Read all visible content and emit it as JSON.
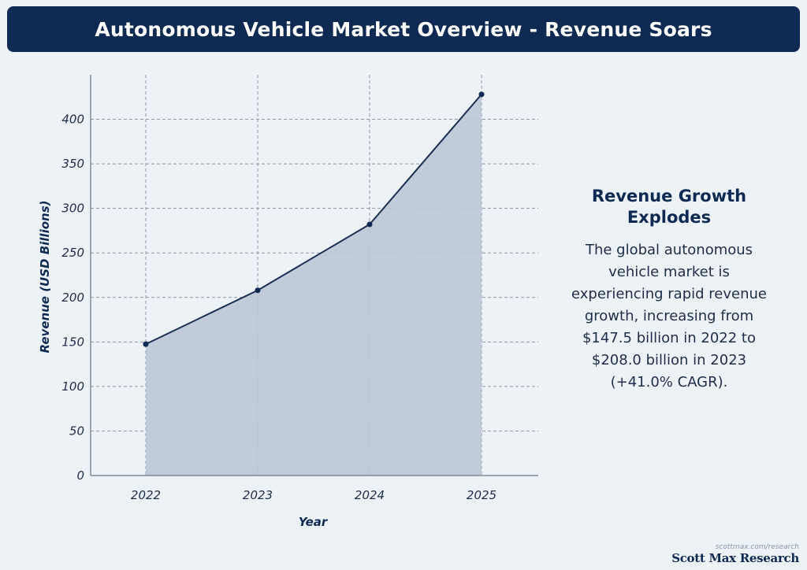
{
  "header": {
    "title": "Autonomous Vehicle Market Overview - Revenue Soars"
  },
  "chart_data": {
    "type": "area",
    "x": [
      "2022",
      "2023",
      "2024",
      "2025"
    ],
    "values": [
      147.5,
      208.0,
      282.0,
      428.0
    ],
    "xlabel": "Year",
    "ylabel": "Revenue (USD Billions)",
    "ylim": [
      0,
      450
    ],
    "yticks": [
      0,
      50,
      100,
      150,
      200,
      250,
      300,
      350,
      400
    ],
    "ytick_labels": [
      "0",
      "50",
      "100",
      "150",
      "200",
      "250",
      "300",
      "350",
      "400"
    ],
    "grid": true,
    "colors": {
      "line": "#1b2f52",
      "fill": "#bcc7d6",
      "marker": "#0f2a52",
      "grid": "#8f98a6"
    }
  },
  "side_panel": {
    "heading": "Revenue Growth Explodes",
    "body": "The global autonomous vehicle market is experiencing rapid revenue growth, increasing from $147.5 billion in 2022 to $208.0 billion in 2023 (+41.0% CAGR)."
  },
  "footer": {
    "url": "scottmax.com/research",
    "brand": "Scott Max Research"
  }
}
